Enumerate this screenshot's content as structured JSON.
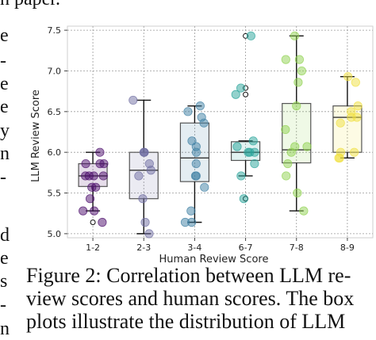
{
  "page": {
    "top_fragment": "h paper.",
    "left_fragments": [
      "e",
      "-",
      "e",
      "e",
      "y",
      "n",
      "-",
      "",
      "d",
      "e",
      "s",
      "-",
      "n"
    ],
    "caption_lines": [
      "Figure 2: Correlation between LLM re-",
      "view scores and human scores. The box",
      "plots illustrate the distribution of LLM"
    ]
  },
  "colors": {
    "1-2": "#4b0c6b",
    "2-3": "#6f6ea1",
    "3-4": "#3e7fa3",
    "6-7": "#27a39a",
    "7-8": "#8fd14f",
    "8-9": "#f0e040"
  },
  "chart_data": {
    "type": "box",
    "xlabel": "Human Review Score",
    "ylabel": "LLM Review Score",
    "ylim": [
      4.95,
      7.55
    ],
    "yticks": [
      5.0,
      5.5,
      6.0,
      6.5,
      7.0,
      7.5
    ],
    "grid": "dotted",
    "categories": [
      "1-2",
      "2-3",
      "3-4",
      "6-7",
      "7-8",
      "8-9"
    ],
    "boxes": [
      {
        "category": "1-2",
        "whisker_low": 5.28,
        "q1": 5.58,
        "median": 5.71,
        "q3": 5.86,
        "whisker_high": 6.0,
        "outliers": [
          5.14
        ],
        "points": [
          5.14,
          5.28,
          5.28,
          5.43,
          5.57,
          5.57,
          5.71,
          5.71,
          5.71,
          5.71,
          5.86,
          5.86,
          5.86,
          6.0
        ]
      },
      {
        "category": "2-3",
        "whisker_low": 5.0,
        "q1": 5.43,
        "median": 5.78,
        "q3": 6.0,
        "whisker_high": 6.64,
        "outliers": [],
        "points": [
          5.0,
          5.14,
          5.43,
          5.71,
          5.78,
          5.86,
          6.0,
          6.0,
          6.0,
          6.64
        ]
      },
      {
        "category": "3-4",
        "whisker_low": 5.14,
        "q1": 5.64,
        "median": 5.93,
        "q3": 6.36,
        "whisker_high": 6.57,
        "outliers": [],
        "points": [
          5.14,
          5.14,
          5.28,
          5.57,
          5.71,
          5.71,
          5.86,
          6.0,
          6.07,
          6.14,
          6.36,
          6.43,
          6.5,
          6.57
        ]
      },
      {
        "category": "6-7",
        "whisker_low": 5.71,
        "q1": 5.9,
        "median": 6.0,
        "q3": 6.13,
        "whisker_high": 6.14,
        "outliers": [
          5.43,
          6.71,
          6.79,
          7.43
        ],
        "points": [
          5.43,
          5.71,
          5.86,
          6.0,
          6.0,
          6.0,
          6.07,
          6.14,
          6.71,
          6.79,
          7.43
        ]
      },
      {
        "category": "7-8",
        "whisker_low": 5.28,
        "q1": 5.87,
        "median": 6.03,
        "q3": 6.6,
        "whisker_high": 7.43,
        "outliers": [],
        "points": [
          5.28,
          5.5,
          5.71,
          5.86,
          6.0,
          6.07,
          6.07,
          6.28,
          6.57,
          6.86,
          7.0,
          7.14,
          7.14,
          7.43
        ]
      },
      {
        "category": "8-9",
        "whisker_low": 5.93,
        "q1": 6.0,
        "median": 6.43,
        "q3": 6.57,
        "whisker_high": 6.93,
        "outliers": [],
        "points": [
          5.93,
          5.93,
          6.0,
          6.0,
          6.36,
          6.43,
          6.43,
          6.5,
          6.57,
          6.86,
          6.93
        ]
      }
    ]
  }
}
